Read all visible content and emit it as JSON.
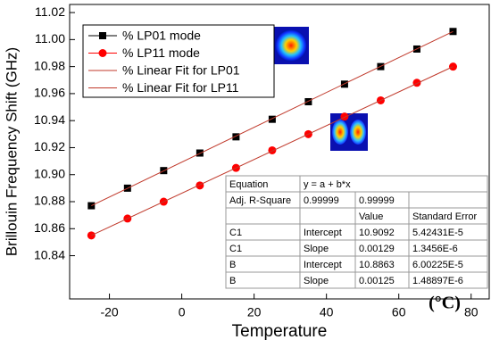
{
  "chart_data": {
    "type": "scatter",
    "xlabel": "Temperature",
    "ylabel": "Brillouin Frequency Shift (GHz)",
    "annotation": "(°C)",
    "xlim": [
      -31,
      85
    ],
    "ylim": [
      10.808,
      11.026
    ],
    "xticks": [
      -20,
      0,
      20,
      40,
      60,
      80
    ],
    "yticks": [
      10.84,
      10.86,
      10.88,
      {
        "value": 10.9,
        "label": "10.90"
      },
      10.92,
      10.94,
      10.96,
      10.98,
      {
        "value": 11.0,
        "label": "11.00"
      },
      11.02
    ],
    "legend": "top-left",
    "series": [
      {
        "name": "% LP01 mode",
        "color": "#000000",
        "marker": "square",
        "x": [
          -25,
          -15,
          -5,
          5,
          15,
          25,
          35,
          45,
          55,
          65,
          75
        ],
        "values": [
          10.877,
          10.89,
          10.903,
          10.916,
          10.928,
          10.941,
          10.954,
          10.967,
          10.98,
          10.993,
          11.006
        ]
      },
      {
        "name": "% LP11 mode",
        "color": "#ff0000",
        "marker": "circle",
        "x": [
          -25,
          -15,
          -5,
          5,
          15,
          25,
          35,
          45,
          55,
          65,
          75
        ],
        "values": [
          10.855,
          10.8675,
          10.88,
          10.892,
          10.905,
          10.918,
          10.93,
          10.943,
          10.955,
          10.968,
          10.98
        ]
      },
      {
        "name": "% Linear Fit for LP01",
        "color": "#c0392b",
        "marker": "line",
        "x": [
          -25,
          75
        ],
        "values": [
          10.877,
          11.006
        ]
      },
      {
        "name": "% Linear Fit for LP11",
        "color": "#c0392b",
        "marker": "line",
        "x": [
          -25,
          75
        ],
        "values": [
          10.855,
          10.98
        ]
      }
    ],
    "table": {
      "rows": [
        [
          "Equation",
          "y = a + b*x",
          null,
          null
        ],
        [
          "Adj. R-Square",
          "0.99999",
          "0.99999",
          null
        ],
        [
          null,
          null,
          "Value",
          "Standard Error"
        ],
        [
          "C1",
          "Intercept",
          "10.9092",
          "5.42431E-5"
        ],
        [
          "C1",
          "Slope",
          "0.00129",
          "1.3456E-6"
        ],
        [
          "B",
          "Intercept",
          "10.8863",
          "6.00225E-5"
        ],
        [
          "B",
          "Slope",
          "0.00125",
          "1.48897E-6"
        ]
      ]
    }
  }
}
